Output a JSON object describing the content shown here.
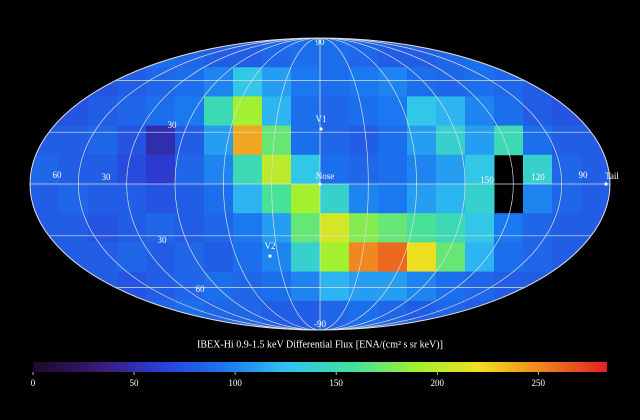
{
  "chart_data": {
    "type": "skymap",
    "title": "IBEX-Hi 0.9-1.5 keV Differential Flux [ENA/(cm² s sr keV)]",
    "z": [
      [
        80,
        80,
        80,
        85,
        90,
        85,
        80,
        80,
        85,
        90,
        90,
        85,
        80,
        80,
        85,
        90,
        85,
        80,
        80,
        80
      ],
      [
        80,
        80,
        75,
        80,
        85,
        90,
        100,
        130,
        110,
        95,
        90,
        95,
        100,
        90,
        85,
        90,
        85,
        80,
        80,
        80
      ],
      [
        80,
        75,
        80,
        85,
        90,
        95,
        150,
        190,
        120,
        90,
        85,
        90,
        95,
        130,
        120,
        100,
        90,
        80,
        75,
        80
      ],
      [
        80,
        80,
        85,
        75,
        50,
        80,
        110,
        240,
        170,
        90,
        85,
        80,
        90,
        110,
        140,
        110,
        150,
        90,
        80,
        80
      ],
      [
        85,
        80,
        80,
        70,
        60,
        85,
        100,
        150,
        200,
        130,
        90,
        85,
        90,
        100,
        110,
        130,
        null,
        140,
        85,
        80
      ],
      [
        80,
        85,
        80,
        80,
        75,
        80,
        90,
        120,
        160,
        190,
        140,
        100,
        95,
        110,
        120,
        140,
        null,
        100,
        85,
        80
      ],
      [
        80,
        80,
        75,
        80,
        85,
        80,
        85,
        95,
        110,
        170,
        210,
        180,
        170,
        160,
        150,
        130,
        95,
        85,
        80,
        80
      ],
      [
        80,
        80,
        80,
        85,
        80,
        85,
        80,
        90,
        100,
        140,
        190,
        250,
        260,
        220,
        170,
        120,
        90,
        85,
        80,
        80
      ],
      [
        80,
        80,
        80,
        75,
        80,
        85,
        90,
        85,
        90,
        100,
        120,
        110,
        110,
        100,
        90,
        85,
        80,
        80,
        80,
        80
      ],
      [
        80,
        80,
        80,
        80,
        85,
        90,
        85,
        85,
        80,
        80,
        85,
        90,
        85,
        80,
        85,
        80,
        85,
        80,
        80,
        80
      ]
    ],
    "colorscale": [
      "#1a0a2a",
      "#3a1870",
      "#2a3ed8",
      "#1a78f0",
      "#30c4f0",
      "#40e0a0",
      "#a0f030",
      "#f0e020",
      "#f08020",
      "#e02020"
    ],
    "clim": [
      0,
      284
    ],
    "cticks": [
      0,
      50,
      100,
      150,
      200,
      250
    ],
    "markers": [
      "V1",
      "Nose",
      "V2",
      "Tail"
    ],
    "grid_labels": [
      "90",
      "30",
      "60",
      "30",
      "30",
      "60",
      "-90",
      "150",
      "120",
      "90"
    ]
  }
}
